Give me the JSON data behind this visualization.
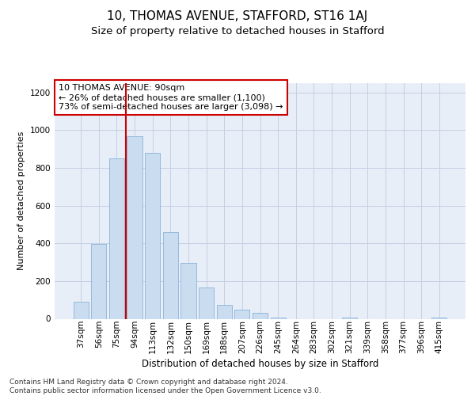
{
  "title1": "10, THOMAS AVENUE, STAFFORD, ST16 1AJ",
  "title2": "Size of property relative to detached houses in Stafford",
  "xlabel": "Distribution of detached houses by size in Stafford",
  "ylabel": "Number of detached properties",
  "categories": [
    "37sqm",
    "56sqm",
    "75sqm",
    "94sqm",
    "113sqm",
    "132sqm",
    "150sqm",
    "169sqm",
    "188sqm",
    "207sqm",
    "226sqm",
    "245sqm",
    "264sqm",
    "283sqm",
    "302sqm",
    "321sqm",
    "339sqm",
    "358sqm",
    "377sqm",
    "396sqm",
    "415sqm"
  ],
  "values": [
    90,
    395,
    850,
    970,
    880,
    460,
    295,
    165,
    75,
    50,
    30,
    5,
    0,
    0,
    0,
    5,
    0,
    0,
    0,
    0,
    5
  ],
  "bar_color": "#c9dcf0",
  "bar_edge_color": "#7aaad4",
  "vline_x": 3.0,
  "vline_color": "#cc0000",
  "annotation_text": "10 THOMAS AVENUE: 90sqm\n← 26% of detached houses are smaller (1,100)\n73% of semi-detached houses are larger (3,098) →",
  "ann_box_fc": "#ffffff",
  "ann_box_ec": "#cc0000",
  "ylim": [
    0,
    1250
  ],
  "yticks": [
    0,
    200,
    400,
    600,
    800,
    1000,
    1200
  ],
  "grid_color": "#c5d0e2",
  "axes_bg": "#e8eef8",
  "footnote": "Contains HM Land Registry data © Crown copyright and database right 2024.\nContains public sector information licensed under the Open Government Licence v3.0.",
  "title1_fs": 11,
  "title2_fs": 9.5,
  "label_fs": 8.5,
  "ylabel_fs": 8,
  "tick_fs": 7.5,
  "ann_fs": 8,
  "foot_fs": 6.5
}
